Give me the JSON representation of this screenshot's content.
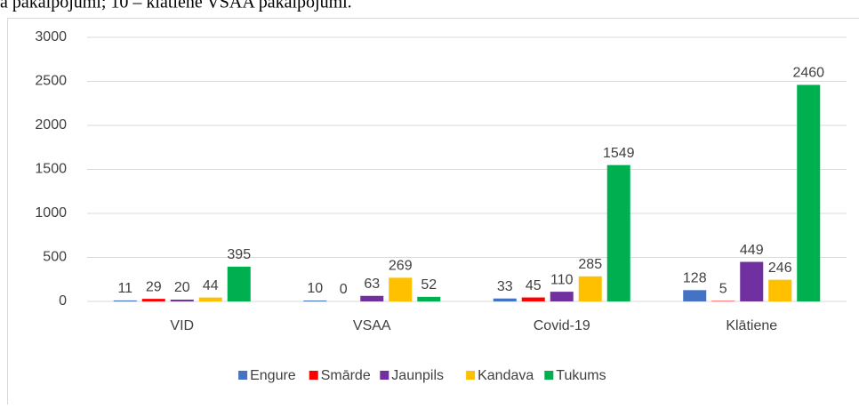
{
  "caption": "a pakalpojumi; 10 – klātienē VSAA pakalpojumi.",
  "chart_data": {
    "type": "bar",
    "categories": [
      "VID",
      "VSAA",
      "Covid-19",
      "Klātiene"
    ],
    "series": [
      {
        "name": "Engure",
        "color": "#4472c4",
        "values": [
          11,
          10,
          33,
          128
        ]
      },
      {
        "name": "Smārde",
        "color": "#ff0000",
        "values": [
          29,
          0,
          45,
          5
        ]
      },
      {
        "name": "Jaunpils",
        "color": "#7030a0",
        "values": [
          20,
          63,
          110,
          449
        ]
      },
      {
        "name": "Kandava",
        "color": "#ffc000",
        "values": [
          44,
          269,
          285,
          246
        ]
      },
      {
        "name": "Tukums",
        "color": "#00b050",
        "values": [
          395,
          52,
          1549,
          2460
        ]
      }
    ],
    "ylim": [
      0,
      3000
    ],
    "yticks": [
      0,
      500,
      1000,
      1500,
      2000,
      2500,
      3000
    ],
    "grid": true,
    "legend": "bottom"
  }
}
